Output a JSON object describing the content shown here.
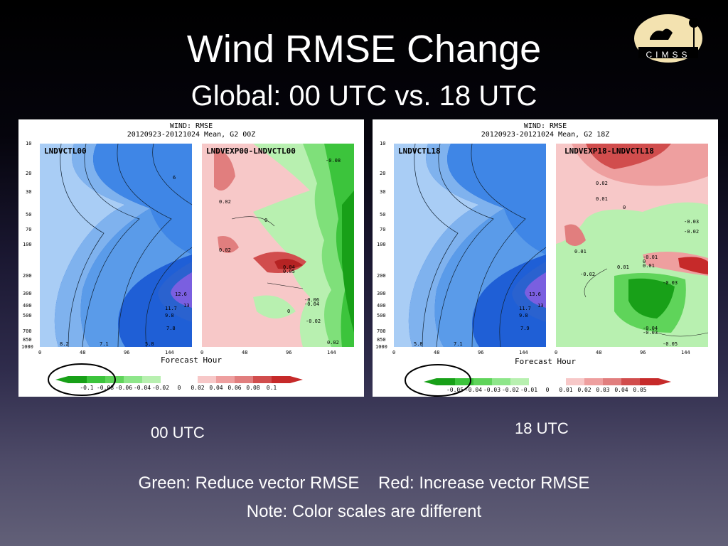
{
  "slide": {
    "title": "Wind RMSE Change",
    "subtitle": "Global: 00 UTC vs. 18 UTC",
    "logo_text": "CIMSS",
    "caption_left": "00 UTC",
    "caption_right": "18 UTC",
    "note_line1": "Green: Reduce vector RMSE    Red: Increase vector RMSE",
    "note_line2": "Note: Color scales are different"
  },
  "panels": [
    {
      "header1": "WIND: RMSE",
      "header2": "20120923-20121024 Mean, G2 00Z",
      "left_label": "LNDVCTL00",
      "right_label": "LNDVEXP00-LNDVCTL00",
      "xlabel": "Forecast Hour",
      "x_ticks": [
        "0",
        "48",
        "96",
        "144"
      ],
      "y_ticks": [
        "10",
        "20",
        "30",
        "50",
        "70",
        "100",
        "200",
        "300",
        "400",
        "500",
        "700",
        "850",
        "1000"
      ],
      "colorbar_ticks": [
        "-0.1",
        "-0.08",
        "-0.06",
        "-0.04",
        "-0.02",
        "0",
        "0.02",
        "0.04",
        "0.06",
        "0.08",
        "0.1"
      ],
      "left_contour_labels": [
        "6",
        "13",
        "12.6",
        "11.7",
        "9.8",
        "7.8",
        "7.1",
        "8.2",
        "5.8"
      ],
      "diff_labels": [
        "-0.08",
        "0.02",
        "0",
        "0.02",
        "0.04",
        "0.05",
        "-0.06",
        "-0.04",
        "0",
        "-0.02",
        "0.02"
      ]
    },
    {
      "header1": "WIND: RMSE",
      "header2": "20120923-20121024 Mean, G2 18Z",
      "left_label": "LNDVCTL18",
      "right_label": "LNDVEXP18-LNDVCTL18",
      "xlabel": "Forecast Hour",
      "x_ticks": [
        "0",
        "48",
        "96",
        "144"
      ],
      "y_ticks": [
        "10",
        "20",
        "30",
        "50",
        "70",
        "100",
        "200",
        "300",
        "400",
        "500",
        "700",
        "850",
        "1000"
      ],
      "colorbar_ticks": [
        "-0.05",
        "-0.04",
        "-0.03",
        "-0.02",
        "-0.01",
        "0",
        "0.01",
        "0.02",
        "0.03",
        "0.04",
        "0.05"
      ],
      "left_contour_labels": [
        "13",
        "13.6",
        "11.7",
        "9.8",
        "7.9",
        "5.8",
        "7.1"
      ],
      "diff_labels": [
        "0.02",
        "0.01",
        "0",
        "-0.03",
        "-0.02",
        "0.01",
        "-0.01",
        "0",
        "0.01",
        "0.01",
        "-0.02",
        "-0.03",
        "-0.04",
        "-0.03",
        "-0.05"
      ]
    }
  ],
  "colors": {
    "blue_dark": "#1f5fd6",
    "blue_light": "#a9cdf5",
    "purple": "#7a5fe0",
    "green_dark": "#18a018",
    "green_light": "#b8f0b0",
    "red_dark": "#c62a2a",
    "red_light": "#f7c8c8",
    "circle": "#000000"
  }
}
